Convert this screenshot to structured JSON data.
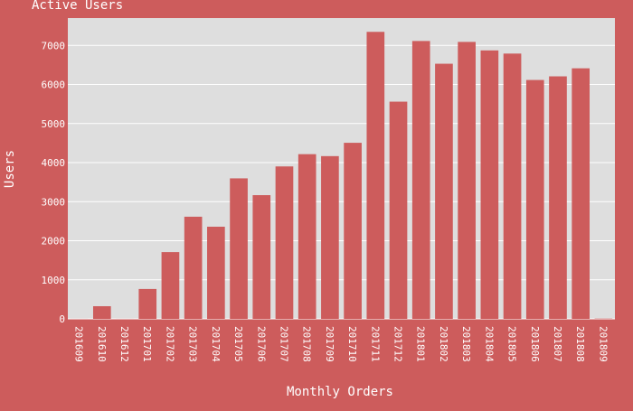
{
  "chart_data": {
    "type": "bar",
    "title": "Active Users",
    "xlabel": "Monthly Orders",
    "ylabel": "Users",
    "ylim": [
      0,
      7700
    ],
    "yticks": [
      0,
      1000,
      2000,
      3000,
      4000,
      5000,
      6000,
      7000
    ],
    "grid": true,
    "categories": [
      "201609",
      "201610",
      "201612",
      "201701",
      "201702",
      "201703",
      "201704",
      "201705",
      "201706",
      "201707",
      "201708",
      "201709",
      "201710",
      "201711",
      "201712",
      "201801",
      "201802",
      "201803",
      "201804",
      "201805",
      "201806",
      "201807",
      "201808",
      "201809"
    ],
    "values": [
      1,
      324,
      1,
      765,
      1709,
      2615,
      2359,
      3597,
      3167,
      3902,
      4216,
      4166,
      4507,
      7347,
      5560,
      7113,
      6531,
      7090,
      6872,
      6791,
      6115,
      6208,
      6414,
      7
    ],
    "colors": {
      "background": "#cd5c5c",
      "plot_bg": "#dedede",
      "bar": "#cd5c5c",
      "grid": "#ffffff",
      "text": "#ffffff"
    }
  }
}
